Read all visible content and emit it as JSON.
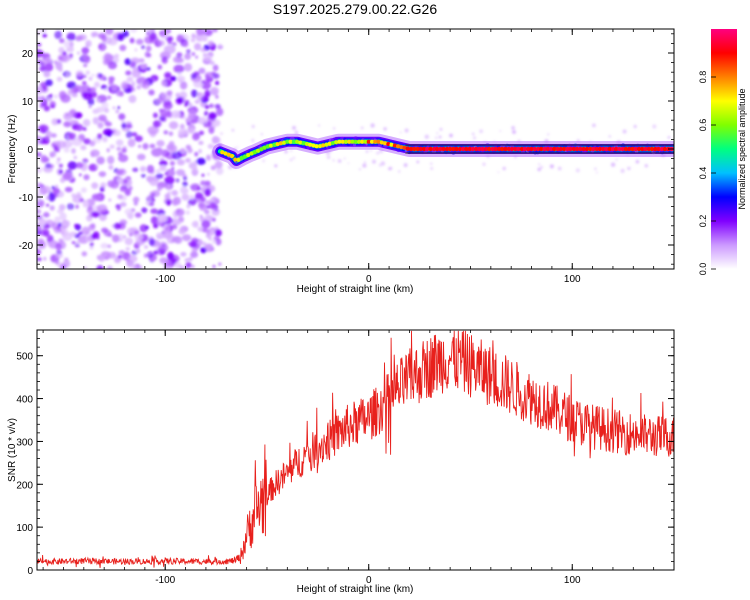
{
  "title": "S197.2025.279.00.22.G26",
  "chart_data": [
    {
      "type": "heatmap",
      "name": "spectrogram",
      "xlabel": "Height of straight line (km)",
      "ylabel": "Frequency (Hz)",
      "xlim": [
        -163,
        150
      ],
      "ylim": [
        -25,
        25
      ],
      "xticks": [
        -100,
        0,
        100
      ],
      "yticks": [
        -20,
        -10,
        0,
        10,
        20
      ],
      "noise_region_x": [
        -163,
        -73
      ],
      "ridge": {
        "x": [
          -73,
          -70,
          -67,
          -65,
          -62,
          -58,
          -55,
          -50,
          -45,
          -40,
          -35,
          -30,
          -25,
          -20,
          -15,
          -10,
          -5,
          0,
          5,
          10,
          15,
          20,
          30,
          40,
          60,
          80,
          100,
          120,
          150
        ],
        "y": [
          -0.5,
          -1.0,
          -1.5,
          -2.5,
          -1.8,
          -1.0,
          -0.5,
          0.5,
          1.0,
          1.5,
          1.5,
          1.0,
          0.5,
          1.0,
          1.5,
          1.5,
          1.5,
          1.5,
          1.5,
          1.0,
          0.5,
          0.0,
          0.0,
          0.0,
          0.0,
          0.0,
          0.0,
          0.0,
          0.0
        ]
      },
      "colorbar": {
        "label": "Normalized spectral amplitude",
        "ticks": [
          "0.0",
          "0.2",
          "0.4",
          "0.6",
          "0.8"
        ],
        "range": [
          0,
          1
        ],
        "colors": [
          "#ffffff",
          "#cc99ff",
          "#8000ff",
          "#0000ff",
          "#00c0ff",
          "#00ff80",
          "#80ff00",
          "#ffff00",
          "#ff8000",
          "#ff0000",
          "#ff0080"
        ]
      }
    },
    {
      "type": "line",
      "name": "snr",
      "xlabel": "Height of straight line (km)",
      "ylabel": "SNR (10 * v/v)",
      "xlim": [
        -163,
        150
      ],
      "ylim": [
        0,
        560
      ],
      "xticks": [
        -100,
        0,
        100
      ],
      "yticks": [
        0,
        100,
        200,
        300,
        400,
        500
      ],
      "series": [
        {
          "name": "SNR",
          "color": "#e8201c",
          "x": [
            -163,
            -150,
            -140,
            -130,
            -120,
            -110,
            -100,
            -90,
            -80,
            -75,
            -70,
            -66,
            -63,
            -60,
            -57,
            -54,
            -50,
            -45,
            -40,
            -35,
            -30,
            -25,
            -20,
            -15,
            -10,
            -5,
            0,
            5,
            10,
            15,
            20,
            25,
            30,
            35,
            40,
            45,
            50,
            55,
            60,
            65,
            70,
            75,
            80,
            85,
            90,
            95,
            100,
            105,
            110,
            115,
            120,
            125,
            130,
            135,
            140,
            145,
            150
          ],
          "y": [
            20,
            20,
            21,
            20,
            20,
            20,
            21,
            20,
            20,
            20,
            20,
            22,
            30,
            80,
            120,
            150,
            175,
            205,
            225,
            250,
            270,
            285,
            300,
            318,
            335,
            345,
            355,
            375,
            400,
            425,
            445,
            460,
            475,
            488,
            495,
            490,
            478,
            465,
            452,
            440,
            428,
            415,
            402,
            390,
            378,
            365,
            352,
            342,
            335,
            330,
            325,
            320,
            318,
            315,
            312,
            312,
            312
          ]
        }
      ]
    }
  ]
}
